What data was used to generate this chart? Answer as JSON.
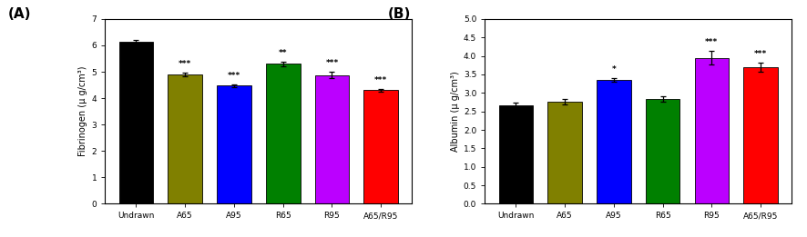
{
  "panel_A": {
    "categories": [
      "Undrawn",
      "A65",
      "A95",
      "R65",
      "R95",
      "A65/R95"
    ],
    "values": [
      6.12,
      4.9,
      4.48,
      5.3,
      4.88,
      4.3
    ],
    "errors": [
      0.1,
      0.07,
      0.05,
      0.08,
      0.12,
      0.06
    ],
    "colors": [
      "#000000",
      "#808000",
      "#0000FF",
      "#008000",
      "#BB00FF",
      "#FF0000"
    ],
    "significance": [
      "",
      "***",
      "***",
      "**",
      "***",
      "***"
    ],
    "ylabel": "Fibrinogen (μ g/cm³)",
    "ylim": [
      0,
      7
    ],
    "yticks": [
      0,
      1,
      2,
      3,
      4,
      5,
      6,
      7
    ],
    "label": "(A)"
  },
  "panel_B": {
    "categories": [
      "Undrawn",
      "A65",
      "A95",
      "R65",
      "R95",
      "A65/R95"
    ],
    "values": [
      2.67,
      2.77,
      3.35,
      2.83,
      3.95,
      3.7
    ],
    "errors": [
      0.07,
      0.07,
      0.05,
      0.07,
      0.18,
      0.12
    ],
    "colors": [
      "#000000",
      "#808000",
      "#0000FF",
      "#008000",
      "#BB00FF",
      "#FF0000"
    ],
    "significance": [
      "",
      "",
      "*",
      "",
      "***",
      "***"
    ],
    "ylabel": "Albumin (μ g/cm³)",
    "ylim": [
      0,
      5.0
    ],
    "yticks": [
      0.0,
      0.5,
      1.0,
      1.5,
      2.0,
      2.5,
      3.0,
      3.5,
      4.0,
      4.5,
      5.0
    ],
    "label": "(B)"
  },
  "fig_width": 8.87,
  "fig_height": 2.61,
  "dpi": 100
}
